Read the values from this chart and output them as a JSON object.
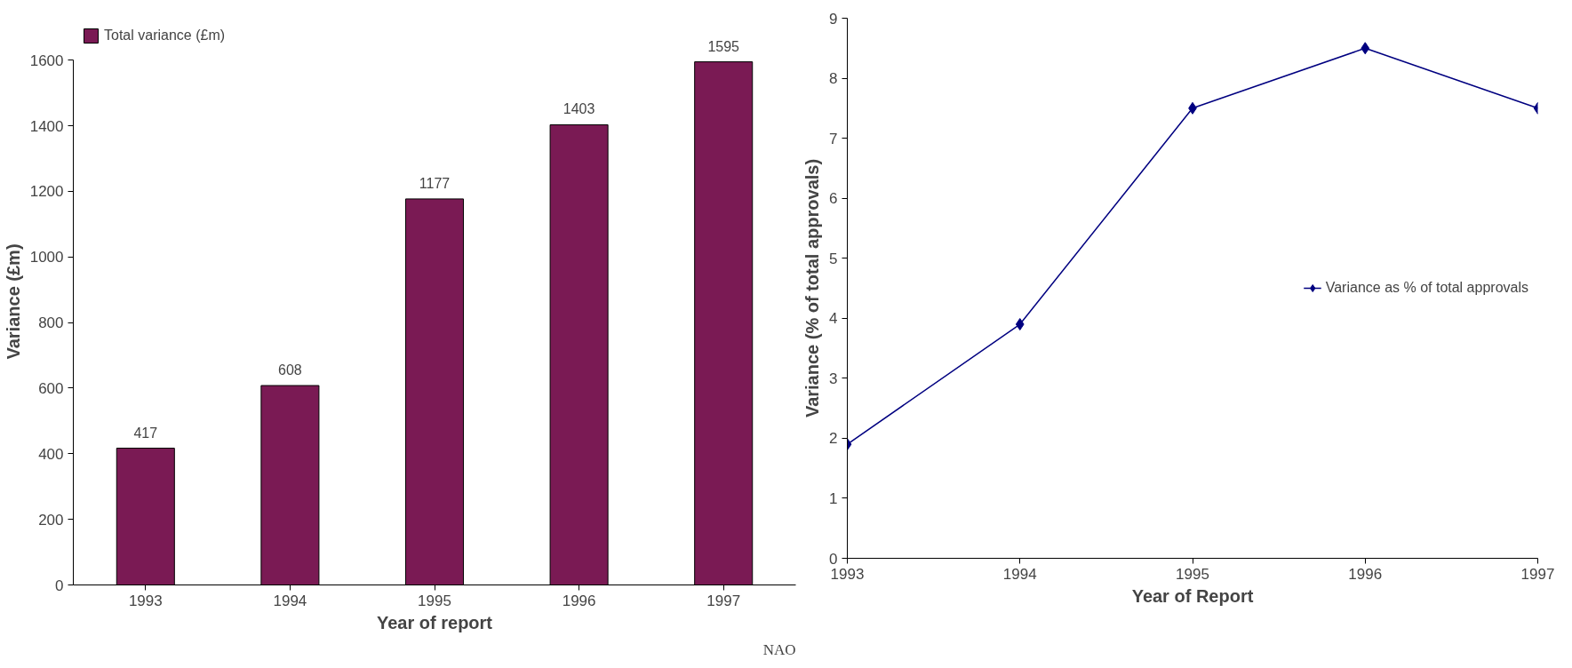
{
  "chart_data": [
    {
      "type": "bar",
      "xlabel": "Year of report",
      "ylabel": "Variance (£m)",
      "categories": [
        "1993",
        "1994",
        "1995",
        "1996",
        "1997"
      ],
      "series": [
        {
          "name": "Total variance (£m)",
          "color": "#7a1a54",
          "values": [
            417,
            608,
            1177,
            1403,
            1595
          ]
        }
      ],
      "ylim": [
        0,
        1600
      ],
      "yticks": [
        0,
        200,
        400,
        600,
        800,
        1000,
        1200,
        1400,
        1600
      ],
      "data_labels": true,
      "legend": "top left",
      "grid": false,
      "annotations": [
        "NAO"
      ]
    },
    {
      "type": "line",
      "xlabel": "Year of Report",
      "ylabel": "Variance (% of total approvals)",
      "x": [
        1993,
        1994,
        1995,
        1996,
        1997
      ],
      "series": [
        {
          "name": "Variance as % of total approvals",
          "color": "#000080",
          "values": [
            1.9,
            3.9,
            7.5,
            8.5,
            7.5
          ]
        }
      ],
      "xlim": [
        1993,
        1997
      ],
      "xticks": [
        1993,
        1994,
        1995,
        1996,
        1997
      ],
      "ylim": [
        0,
        9
      ],
      "yticks": [
        0,
        1,
        2,
        3,
        4,
        5,
        6,
        7,
        8,
        9
      ],
      "marker": "diamond",
      "line_style": "solid",
      "legend": "right",
      "grid": false
    }
  ]
}
